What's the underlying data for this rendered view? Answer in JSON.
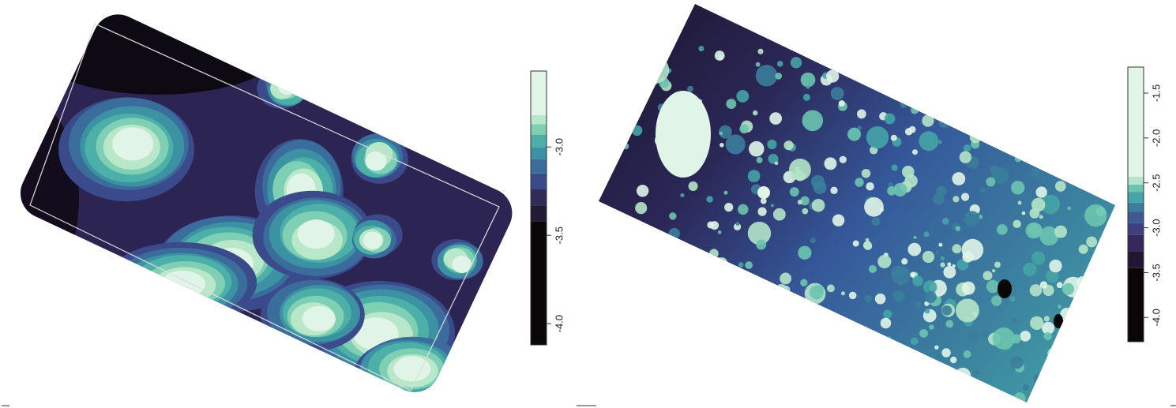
{
  "maps": [
    {
      "colorbar": {
        "lim": [
          -4.12,
          -2.57
        ],
        "ticks": [
          {
            "value": -3,
            "label": "-3.0"
          },
          {
            "value": -3.5,
            "label": "-3.5"
          },
          {
            "value": -4,
            "label": "-4.0"
          }
        ],
        "breaks": [
          -4.12,
          -3.42,
          -3.33,
          -3.24,
          -3.15,
          -3.07,
          -3.0,
          -2.93,
          -2.87,
          -2.82,
          -2.57
        ],
        "colors": [
          "#0b0608",
          "#231a33",
          "#2f2c5a",
          "#3b4a8a",
          "#3a6c9c",
          "#3c92a3",
          "#4cb0a8",
          "#7fcfb5",
          "#b9e7ca",
          "#e0f5e8"
        ]
      }
    },
    {
      "colorbar": {
        "lim": [
          -4.27,
          -1.21
        ],
        "ticks": [
          {
            "value": -1.5,
            "label": "-1.5"
          },
          {
            "value": -2,
            "label": "-2.0"
          },
          {
            "value": -2.5,
            "label": "-2.5"
          },
          {
            "value": -3,
            "label": "-3.0"
          },
          {
            "value": -3.5,
            "label": "-3.5"
          },
          {
            "value": -4,
            "label": "-4.0"
          }
        ],
        "breaks": [
          -4.27,
          -3.45,
          -3.26,
          -3.08,
          -2.95,
          -2.82,
          -2.72,
          -2.6,
          -2.52,
          -2.43,
          -1.21
        ],
        "colors": [
          "#0b0608",
          "#221630",
          "#34295c",
          "#3f3f80",
          "#3d5a93",
          "#3b7d9c",
          "#44a4a6",
          "#6cc4b0",
          "#b5e4c8",
          "#e0f5e8"
        ]
      }
    }
  ]
}
